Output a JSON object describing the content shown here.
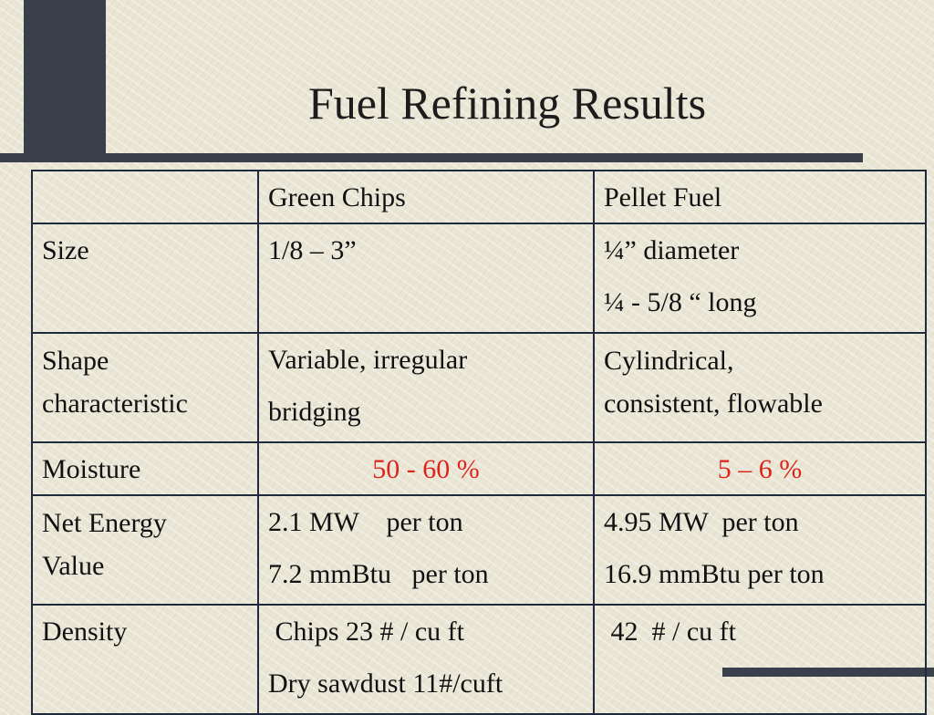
{
  "slide": {
    "title": "Fuel Refining Results"
  },
  "table": {
    "headers": [
      "",
      "Green Chips",
      "Pellet Fuel"
    ],
    "rows": [
      {
        "label": [
          "Size"
        ],
        "green_chips": [
          "1/8 – 3”"
        ],
        "pellet_fuel": [
          "¼” diameter",
          "¼ - 5/8 “ long"
        ]
      },
      {
        "label": [
          "Shape",
          "characteristic"
        ],
        "green_chips": [
          "Variable, irregular",
          "bridging"
        ],
        "pellet_fuel": [
          "Cylindrical,",
          "consistent, flowable"
        ]
      },
      {
        "label": [
          "Moisture"
        ],
        "green_chips": [
          "50 - 60 %"
        ],
        "pellet_fuel": [
          "5 – 6 %"
        ]
      },
      {
        "label": [
          "Net Energy",
          "Value"
        ],
        "green_chips": [
          "2.1 MW    per ton",
          "7.2 mmBtu   per ton"
        ],
        "pellet_fuel": [
          "4.95 MW  per ton",
          "16.9 mmBtu per ton"
        ]
      },
      {
        "label": [
          "Density"
        ],
        "green_chips": [
          " Chips 23 # / cu ft",
          "Dry sawdust 11#/cuft"
        ],
        "pellet_fuel": [
          " 42  # / cu ft"
        ]
      }
    ]
  },
  "colors": {
    "background": "#e9e6d6",
    "accent": "#3a3f4c",
    "highlight": "#e0231a"
  }
}
